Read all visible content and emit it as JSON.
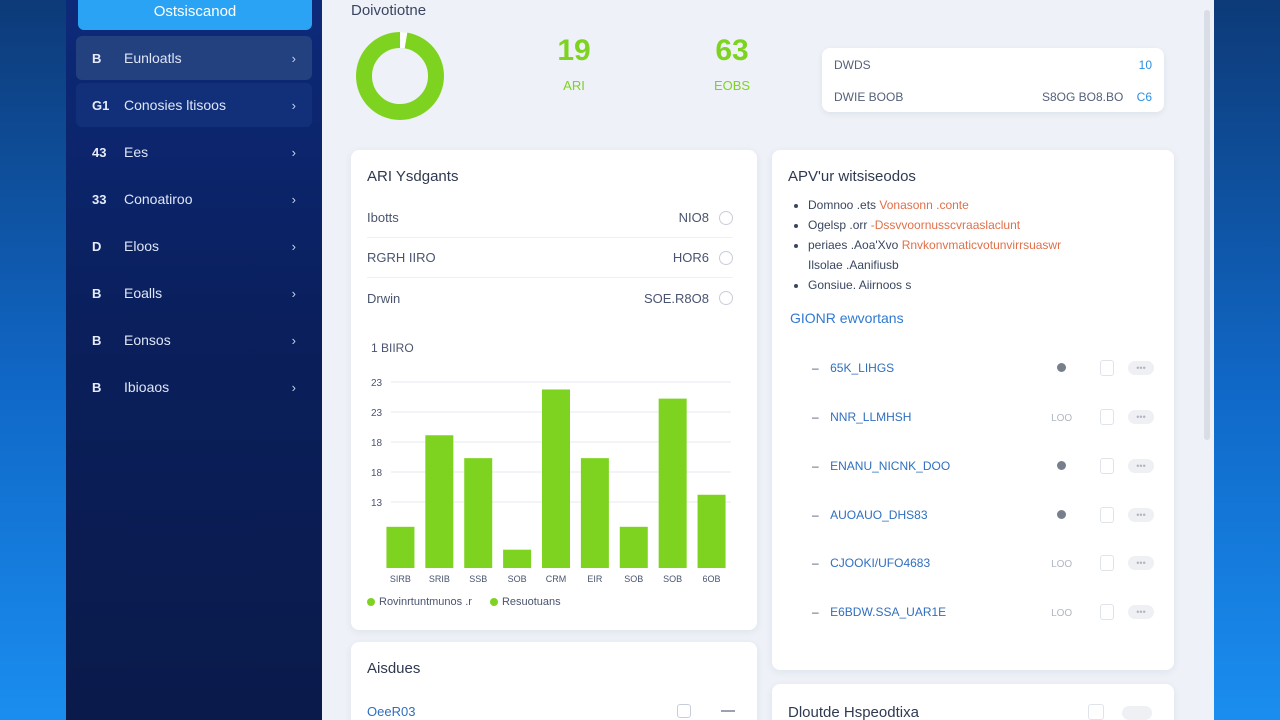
{
  "sidebar": {
    "brand_label": "Ostsiscanod",
    "items": [
      {
        "icon": "B",
        "label": "Eunloatls",
        "icon_name": "document-icon"
      },
      {
        "icon": "G1",
        "label": "Conosies ltisoos",
        "icon_name": "grid-icon"
      },
      {
        "icon": "43",
        "label": "Ees",
        "icon_name": "chart-icon"
      },
      {
        "icon": "33",
        "label": "Conoatiroo",
        "icon_name": "settings-icon"
      },
      {
        "icon": "D",
        "label": "Eloos",
        "icon_name": "folder-icon"
      },
      {
        "icon": "B",
        "label": "Eoalls",
        "icon_name": "bookmark-icon"
      },
      {
        "icon": "B",
        "label": "Eonsos",
        "icon_name": "server-icon"
      },
      {
        "icon": "B",
        "label": "Ibioaos",
        "icon_name": "users-icon"
      }
    ]
  },
  "header": {
    "title": "Doivotiotne",
    "stats": [
      {
        "value": "19",
        "label": "ARI"
      },
      {
        "value": "63",
        "label": "EOBS"
      }
    ],
    "info": {
      "row1_label": "DWDS",
      "row1_value": "10",
      "row2_label": "DWIE BOOB",
      "row2_value": "S8OG BO8.BO",
      "row2_extra": "C6"
    }
  },
  "api_card": {
    "title": "ARI Ysdgants",
    "rows": [
      {
        "label": "Ibotts",
        "value": "NIO8"
      },
      {
        "label": "RGRH IIRO",
        "value": "HOR6"
      },
      {
        "label": "Drwin",
        "value": "SOE.R8O8"
      }
    ],
    "chart_title": "1 BIIRO",
    "legend": [
      "Rovinrtuntmunos .r",
      "Resuotuans"
    ]
  },
  "chart_data": {
    "type": "bar",
    "categories": [
      "SIRB",
      "SRIB",
      "SSB",
      "SOB",
      "CRM",
      "EIR",
      "SOB",
      "SOB",
      "6OB"
    ],
    "values": [
      9,
      29,
      24,
      4,
      39,
      24,
      9,
      37,
      16
    ],
    "y_ticks": [
      "23",
      "23",
      "18",
      "18",
      "13"
    ],
    "colors": {
      "bar": "#7ed321",
      "grid": "#e6e9ef"
    }
  },
  "right_card": {
    "title": "APV'ur witsiseodos",
    "bullets": [
      {
        "text": "Domnoo .ets",
        "hl": "Vonasonn .conte"
      },
      {
        "text": "Ogelsp .orr",
        "hl": "-Dssvvoornusscvraaslaclunt"
      },
      {
        "text": "periaes .Aoa'Xvo",
        "hl": "Rnvkonvmaticvotunvirrsuaswr"
      },
      {
        "text": "Ilsolae .Aanifiusb",
        "hl": ""
      },
      {
        "text": "Gonsiue. Aiirnoos s",
        "hl": ""
      }
    ],
    "section_title": "GIONR ewvortans",
    "rows": [
      {
        "name": "65K_LIHGS",
        "state": "dot"
      },
      {
        "name": "NNR_LLMHSH",
        "state": "text",
        "state_text": "LOO"
      },
      {
        "name": "ENANU_NICNK_DOO",
        "state": "dot"
      },
      {
        "name": "AUOAUO_DHS83",
        "state": "dot"
      },
      {
        "name": "CJOOKI/UFO4683",
        "state": "text",
        "state_text": "LOO"
      },
      {
        "name": "E6BDW.SSA_UAR1E",
        "state": "text",
        "state_text": "LOO"
      }
    ],
    "more_label": "•••"
  },
  "bottom_left": {
    "title": "Aisdues",
    "row1": "OeeR03"
  },
  "bottom_right": {
    "title": "Dloutde Hspeodtixa"
  },
  "colors": {
    "accent_green": "#7ed321",
    "brand_blue": "#2aa3f5",
    "sidebar": "#0d2a7a"
  }
}
